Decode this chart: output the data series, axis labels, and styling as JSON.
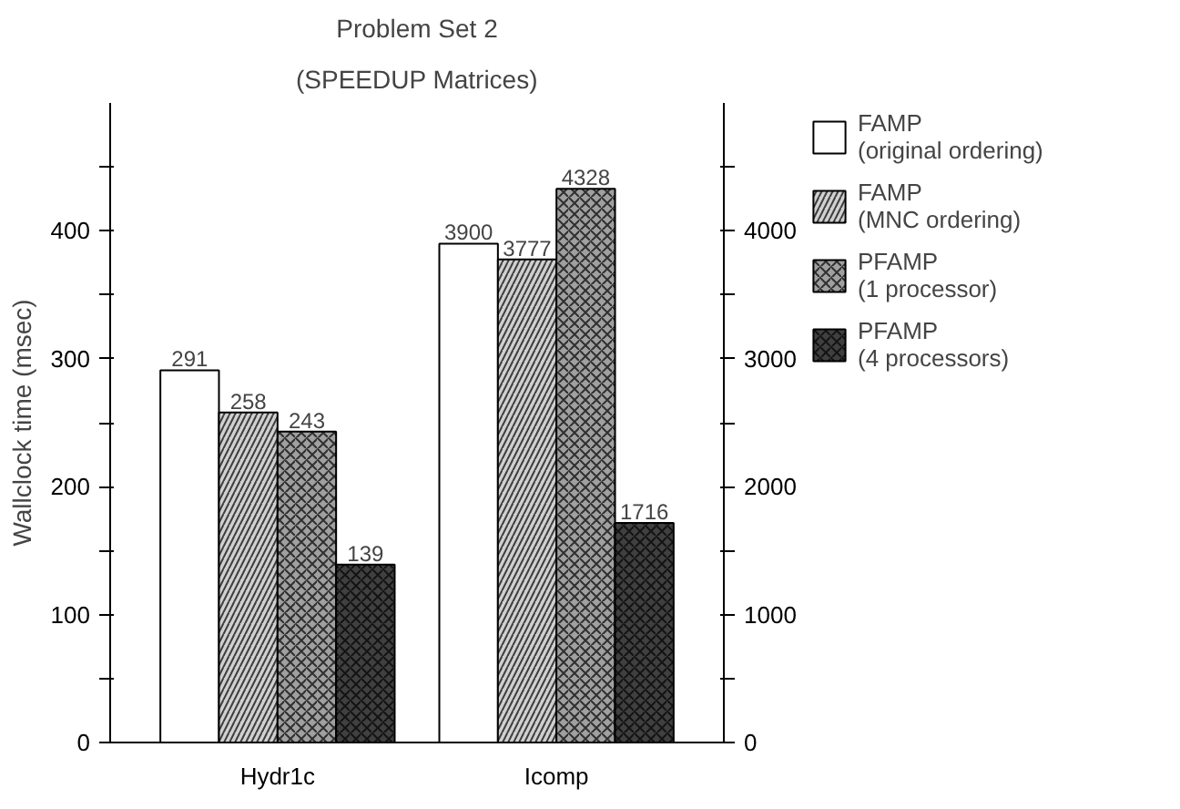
{
  "chart_data": {
    "type": "bar",
    "title": "Problem Set 2",
    "subtitle": "(SPEEDUP Matrices)",
    "ylabel": "Wallclock time (msec)",
    "categories": [
      "Hydr1c",
      "Icomp"
    ],
    "series": [
      {
        "name": "FAMP\n(original ordering)",
        "color": "#ffffff",
        "values": [
          291,
          null
        ]
      },
      {
        "name": "FAMP\n(MNC ordering)",
        "color": "#d0d0d0",
        "values": [
          258,
          null
        ]
      },
      {
        "name": "PFAMP\n(1 processor)",
        "color": "#a0a0a0",
        "values": [
          243,
          null
        ]
      },
      {
        "name": "PFAMP\n(4 processors)",
        "color": "#404040",
        "values": [
          139,
          null
        ]
      },
      {
        "color": "#ffffff",
        "values": [
          null,
          3900
        ],
        "axis": "y2"
      },
      {
        "color": "#d0d0d0",
        "values": [
          null,
          3777
        ],
        "axis": "y2"
      },
      {
        "color": "#a0a0a0",
        "values": [
          null,
          4328
        ],
        "axis": "y2"
      },
      {
        "color": "#404040",
        "values": [
          null,
          1716
        ],
        "axis": "y2"
      }
    ],
    "ylim": [
      0,
      500
    ],
    "yticks": [
      0,
      {
        "value": 50,
        "label": null
      },
      100,
      {
        "value": 150,
        "label": null
      },
      200,
      {
        "value": 250,
        "label": null
      },
      300,
      {
        "value": 350,
        "label": null
      },
      400,
      {
        "value": 450,
        "label": null
      }
    ],
    "y2lim": [
      0,
      5000
    ],
    "y2ticks": [
      0,
      {
        "value": 500,
        "label": null
      },
      1000,
      {
        "value": 1500,
        "label": null
      },
      2000,
      {
        "value": 2500,
        "label": null
      },
      3000,
      {
        "value": 3500,
        "label": null
      },
      4000,
      {
        "value": 4500,
        "label": null
      }
    ],
    "data_labels": true,
    "legend": "top right",
    "grid": false
  }
}
